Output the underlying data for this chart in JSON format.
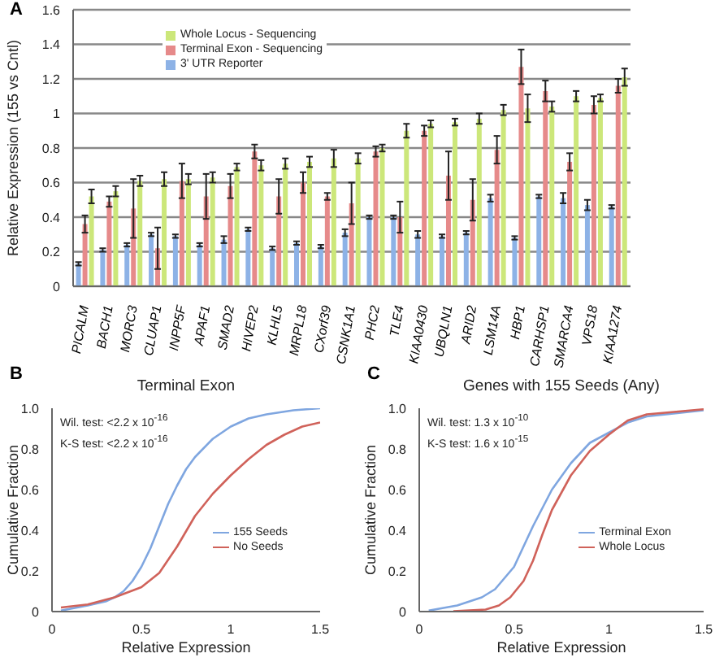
{
  "chart_data": [
    {
      "type": "bar",
      "annotations": [
        "A"
      ],
      "ylabel": "Relative Expression (155 vs Cntl)",
      "categories": [
        "PICALM",
        "BACH1",
        "MORC3",
        "CLUAP1",
        "INPP5F",
        "APAF1",
        "SMAD2",
        "HIVEP2",
        "KLHL5",
        "MRPL18",
        "CXorf39",
        "CSNK1A1",
        "PHC2",
        "TLE4",
        "KIAA0430",
        "UBQLN1",
        "ARID2",
        "LSM14A",
        "HBP1",
        "CARHSP1",
        "SMARCA4",
        "VPS18",
        "KIAA1274"
      ],
      "ylim": [
        0,
        1.6
      ],
      "yticks": [
        0,
        0.2,
        0.4,
        0.6,
        0.8,
        1,
        1.2,
        1.4,
        1.6
      ],
      "grid": "y",
      "legend": "top left",
      "series": [
        {
          "name": "3' UTR Reporter",
          "color": "#8db2e6",
          "values": [
            0.13,
            0.21,
            0.24,
            0.3,
            0.29,
            0.24,
            0.27,
            0.33,
            0.22,
            0.25,
            0.23,
            0.31,
            0.4,
            0.4,
            0.3,
            0.29,
            0.31,
            0.51,
            0.28,
            0.52,
            0.51,
            0.47,
            0.46
          ],
          "errors": [
            0.01,
            0.01,
            0.01,
            0.01,
            0.01,
            0.01,
            0.02,
            0.01,
            0.01,
            0.01,
            0.01,
            0.02,
            0.01,
            0.01,
            0.02,
            0.01,
            0.01,
            0.02,
            0.01,
            0.01,
            0.03,
            0.03,
            0.01
          ]
        },
        {
          "name": "Terminal Exon - Sequencing",
          "color": "#e68a8a",
          "values": [
            0.36,
            0.49,
            0.45,
            0.22,
            0.61,
            0.52,
            0.58,
            0.78,
            0.52,
            0.6,
            0.52,
            0.48,
            0.78,
            0.4,
            0.9,
            0.64,
            0.5,
            0.79,
            1.27,
            1.13,
            0.72,
            1.05,
            1.16
          ],
          "errors": [
            0.05,
            0.03,
            0.17,
            0.12,
            0.1,
            0.13,
            0.07,
            0.04,
            0.1,
            0.06,
            0.02,
            0.12,
            0.03,
            0.09,
            0.03,
            0.14,
            0.12,
            0.08,
            0.1,
            0.06,
            0.05,
            0.05,
            0.04
          ]
        },
        {
          "name": "Whole Locus - Sequencing",
          "color": "#cce77a",
          "values": [
            0.52,
            0.55,
            0.61,
            0.62,
            0.62,
            0.63,
            0.69,
            0.7,
            0.71,
            0.72,
            0.74,
            0.74,
            0.8,
            0.9,
            0.94,
            0.95,
            0.97,
            1.02,
            1.03,
            1.04,
            1.1,
            1.09,
            1.21
          ],
          "errors": [
            0.04,
            0.03,
            0.03,
            0.04,
            0.03,
            0.03,
            0.02,
            0.03,
            0.03,
            0.03,
            0.05,
            0.03,
            0.02,
            0.04,
            0.02,
            0.02,
            0.03,
            0.03,
            0.08,
            0.03,
            0.03,
            0.02,
            0.05
          ]
        }
      ]
    },
    {
      "type": "line",
      "title": "Terminal Exon",
      "annotations": [
        "B",
        "Wil. test: <2.2 x 10$^{-16}$",
        "K-S test: <2.2 x 10$^{-16}$"
      ],
      "xlabel": "Relative Expression",
      "ylabel": "Cumulative Fraction",
      "xlim": [
        0,
        1.5
      ],
      "xticks": [
        0,
        0.5,
        1,
        1.5
      ],
      "ylim": [
        0,
        1
      ],
      "yticks": [
        0,
        0.2,
        0.4,
        0.6,
        0.8,
        {
          "value": 1,
          "label": "1.0"
        }
      ],
      "legend": "right",
      "marker": "none",
      "series": [
        {
          "name": "155 Seeds",
          "color": "#7fa6e0",
          "x": [
            0.05,
            0.2,
            0.3,
            0.35,
            0.4,
            0.45,
            0.5,
            0.55,
            0.6,
            0.65,
            0.7,
            0.75,
            0.8,
            0.9,
            1,
            1.1,
            1.2,
            1.35,
            1.5
          ],
          "values": [
            0.005,
            0.03,
            0.05,
            0.07,
            0.1,
            0.15,
            0.22,
            0.31,
            0.42,
            0.53,
            0.62,
            0.7,
            0.76,
            0.85,
            0.91,
            0.95,
            0.97,
            0.99,
            1
          ]
        },
        {
          "name": "No Seeds",
          "color": "#d0625a",
          "x": [
            0.05,
            0.2,
            0.35,
            0.5,
            0.6,
            0.7,
            0.8,
            0.9,
            1,
            1.1,
            1.2,
            1.3,
            1.4,
            1.5
          ],
          "values": [
            0.02,
            0.035,
            0.07,
            0.12,
            0.19,
            0.32,
            0.47,
            0.58,
            0.67,
            0.75,
            0.82,
            0.87,
            0.91,
            0.93
          ]
        }
      ]
    },
    {
      "type": "line",
      "title": "Genes with 155 Seeds (Any)",
      "annotations": [
        "C",
        "Wil. test: 1.3 x 10$^{-10}$",
        "K-S test: 1.6 x 10$^{-15}$"
      ],
      "xlabel": "Relative Expression",
      "ylabel": "Cumulative Fraction",
      "xlim": [
        0,
        1.5
      ],
      "xticks": [
        0,
        0.5,
        1,
        1.5
      ],
      "ylim": [
        0,
        1
      ],
      "yticks": [
        0,
        0.2,
        0.4,
        0.6,
        0.8,
        {
          "value": 1,
          "label": "1.0"
        }
      ],
      "legend": "right",
      "marker": "none",
      "series": [
        {
          "name": "Terminal Exon",
          "color": "#7fa6e0",
          "x": [
            0.05,
            0.2,
            0.33,
            0.4,
            0.5,
            0.55,
            0.6,
            0.7,
            0.8,
            0.9,
            1,
            1.1,
            1.2,
            1.5
          ],
          "values": [
            0.005,
            0.03,
            0.07,
            0.11,
            0.22,
            0.32,
            0.42,
            0.6,
            0.73,
            0.83,
            0.88,
            0.93,
            0.96,
            0.99
          ]
        },
        {
          "name": "Whole Locus",
          "color": "#d0625a",
          "x": [
            0.18,
            0.35,
            0.42,
            0.48,
            0.55,
            0.6,
            0.65,
            0.7,
            0.8,
            0.9,
            1,
            1.1,
            1.2,
            1.5
          ],
          "values": [
            0.002,
            0.01,
            0.03,
            0.07,
            0.15,
            0.25,
            0.38,
            0.5,
            0.67,
            0.79,
            0.87,
            0.94,
            0.97,
            0.995
          ]
        }
      ]
    }
  ]
}
